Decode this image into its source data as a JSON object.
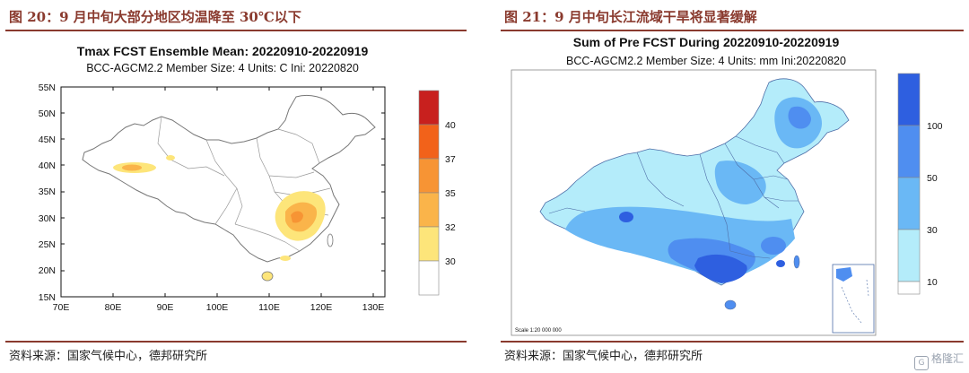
{
  "left": {
    "figure_title": "图 20：9 月中旬大部分地区均温降至 30℃以下",
    "map_title": "Tmax FCST Ensemble Mean: 20220910-20220919",
    "map_subtitle": "BCC-AGCM2.2   Member Size: 4   Units: C   Ini: 20220820",
    "lat_ticks": [
      "55N",
      "50N",
      "45N",
      "40N",
      "35N",
      "30N",
      "25N",
      "20N",
      "15N"
    ],
    "lon_ticks": [
      "70E",
      "80E",
      "90E",
      "100E",
      "110E",
      "120E",
      "130E"
    ],
    "legend": {
      "labels": [
        "40",
        "37",
        "35",
        "32",
        "30"
      ],
      "colors": [
        "#c8201e",
        "#f2621a",
        "#f79434",
        "#fab44a",
        "#fde57a",
        "#ffffff"
      ]
    },
    "source": "资料来源：国家气候中心，德邦研究所"
  },
  "right": {
    "figure_title": "图 21：9 月中旬长江流域干旱将显著缓解",
    "map_title": "Sum of Pre FCST During 20220910-20220919",
    "map_subtitle": "BCC-AGCM2.2   Member Size: 4   Units: mm   Ini:20220820",
    "legend": {
      "labels": [
        "100",
        "50",
        "30",
        "10"
      ],
      "colors": [
        "#2e5fe0",
        "#4f8ef0",
        "#6ab8f5",
        "#b4ecfa",
        "#ffffff"
      ]
    },
    "scale_text": "Scale 1:20 000 000",
    "source": "资料来源：国家气候中心，德邦研究所"
  },
  "watermark": "格隆汇",
  "colors": {
    "accent": "#8a3a2e"
  }
}
